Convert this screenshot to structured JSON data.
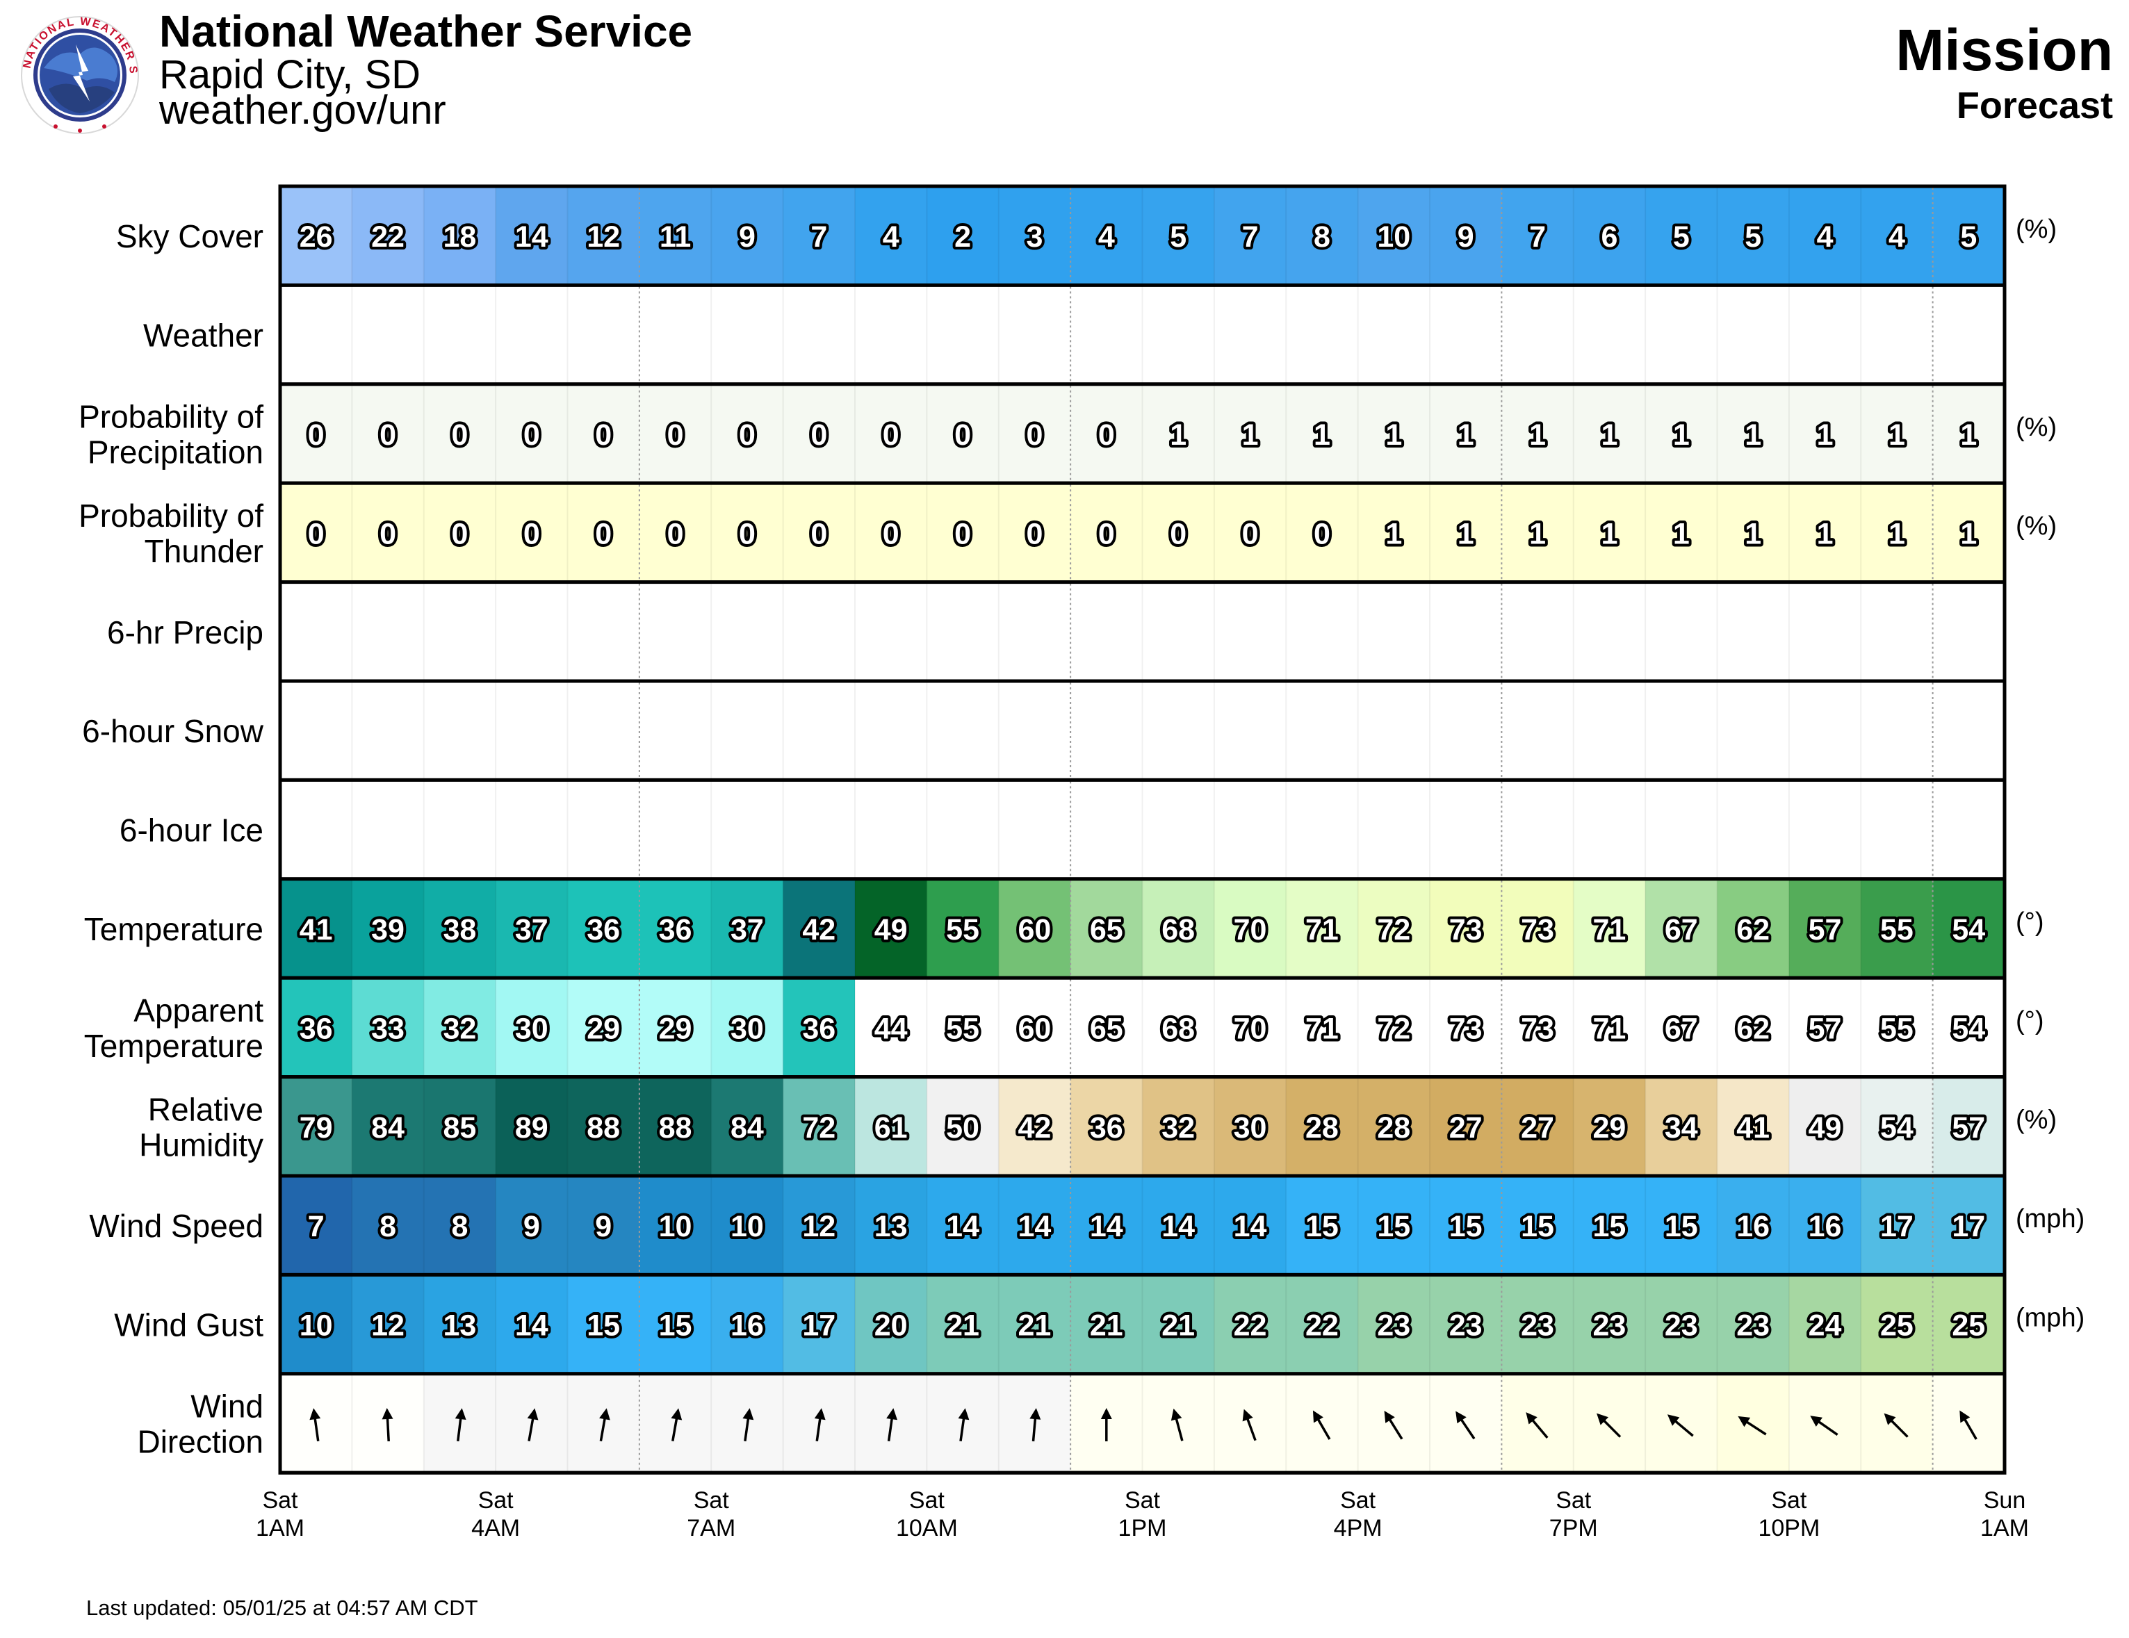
{
  "header": {
    "agency": "National Weather Service",
    "office": "Rapid City, SD",
    "url": "weather.gov/unr",
    "location": "Mission",
    "product": "Forecast",
    "logo_text": "NATIONAL WEATHER SERVICE"
  },
  "footer": {
    "last_updated": "Last updated: 05/01/25 at 04:57 AM CDT"
  },
  "chart_data": {
    "type": "table",
    "x_ticks": [
      {
        "day": "Sat",
        "time": "1AM",
        "hour_index": 0
      },
      {
        "day": "Sat",
        "time": "4AM",
        "hour_index": 3
      },
      {
        "day": "Sat",
        "time": "7AM",
        "hour_index": 6
      },
      {
        "day": "Sat",
        "time": "10AM",
        "hour_index": 9
      },
      {
        "day": "Sat",
        "time": "1PM",
        "hour_index": 12
      },
      {
        "day": "Sat",
        "time": "4PM",
        "hour_index": 15
      },
      {
        "day": "Sat",
        "time": "7PM",
        "hour_index": 18
      },
      {
        "day": "Sat",
        "time": "10PM",
        "hour_index": 21
      },
      {
        "day": "Sun",
        "time": "1AM",
        "hour_index": 24
      }
    ],
    "day_boundaries": [
      5,
      11,
      17,
      23
    ],
    "rows": [
      {
        "label": [
          "Sky Cover"
        ],
        "unit": "(%)",
        "kind": "values",
        "values": [
          26,
          22,
          18,
          14,
          12,
          11,
          9,
          7,
          4,
          2,
          3,
          4,
          5,
          7,
          8,
          10,
          9,
          7,
          6,
          5,
          5,
          4,
          4,
          5
        ],
        "colors": [
          "#9ac2f9",
          "#8bb9f7",
          "#7ab1f5",
          "#5fa6ee",
          "#55a5ee",
          "#4ea5ee",
          "#4aa4ee",
          "#41a4ee",
          "#33a2ee",
          "#2ea0ee",
          "#30a1ee",
          "#33a2ee",
          "#36a3ee",
          "#41a4ee",
          "#45a4ee",
          "#4ea5ee",
          "#4aa4ee",
          "#41a4ee",
          "#3da3ee",
          "#36a3ee",
          "#36a3ee",
          "#33a2ee",
          "#33a2ee",
          "#36a3ee"
        ]
      },
      {
        "label": [
          "Weather"
        ],
        "unit": "",
        "kind": "empty"
      },
      {
        "label": [
          "Probability of",
          "Precipitation"
        ],
        "unit": "(%)",
        "kind": "values",
        "values": [
          0,
          0,
          0,
          0,
          0,
          0,
          0,
          0,
          0,
          0,
          0,
          0,
          1,
          1,
          1,
          1,
          1,
          1,
          1,
          1,
          1,
          1,
          1,
          1
        ],
        "colors": [
          "#f5f9f2"
        ]
      },
      {
        "label": [
          "Probability of",
          "Thunder"
        ],
        "unit": "(%)",
        "kind": "values",
        "values": [
          0,
          0,
          0,
          0,
          0,
          0,
          0,
          0,
          0,
          0,
          0,
          0,
          0,
          0,
          0,
          1,
          1,
          1,
          1,
          1,
          1,
          1,
          1,
          1
        ],
        "colors": [
          "#ffffd2"
        ]
      },
      {
        "label": [
          "6-hr Precip"
        ],
        "unit": "",
        "kind": "empty"
      },
      {
        "label": [
          "6-hour Snow"
        ],
        "unit": "",
        "kind": "empty"
      },
      {
        "label": [
          "6-hour Ice"
        ],
        "unit": "",
        "kind": "empty"
      },
      {
        "label": [
          "Temperature"
        ],
        "unit": "(°)",
        "kind": "values",
        "values": [
          41,
          39,
          38,
          37,
          36,
          36,
          37,
          42,
          49,
          55,
          60,
          65,
          68,
          70,
          71,
          72,
          73,
          73,
          71,
          67,
          62,
          57,
          55,
          54
        ],
        "colors": [
          "#06928c",
          "#0aa29c",
          "#11ada6",
          "#1ab8b0",
          "#1dc2b8",
          "#1dc2b8",
          "#1ab8b0",
          "#0b7479",
          "#046428",
          "#2e9e4e",
          "#74c175",
          "#a2d99c",
          "#c6f0b8",
          "#d9fbc2",
          "#e4fdc6",
          "#ecfdc1",
          "#f2fdbb",
          "#f2fdbb",
          "#e4fdc6",
          "#b1e1a8",
          "#88cc82",
          "#55ad5a",
          "#3a9d4c",
          "#2b9547"
        ]
      },
      {
        "label": [
          "Apparent",
          "Temperature"
        ],
        "unit": "(°)",
        "kind": "values",
        "values": [
          36,
          33,
          32,
          30,
          29,
          29,
          30,
          36,
          44,
          55,
          60,
          65,
          68,
          70,
          71,
          72,
          73,
          73,
          71,
          67,
          62,
          57,
          55,
          54
        ],
        "colors": [
          "#23c4ba",
          "#5ddcd3",
          "#81ebe3",
          "#a2f8f3",
          "#b2fcf8",
          "#b2fcf8",
          "#a2f8f3",
          "#23c4ba",
          "#ffffff",
          "#ffffff",
          "#ffffff",
          "#ffffff",
          "#ffffff",
          "#ffffff",
          "#ffffff",
          "#ffffff",
          "#ffffff",
          "#ffffff",
          "#ffffff",
          "#ffffff",
          "#ffffff",
          "#ffffff",
          "#ffffff",
          "#ffffff"
        ]
      },
      {
        "label": [
          "Relative",
          "Humidity"
        ],
        "unit": "(%)",
        "kind": "values",
        "values": [
          79,
          84,
          85,
          89,
          88,
          88,
          84,
          72,
          61,
          50,
          42,
          36,
          32,
          30,
          28,
          28,
          27,
          27,
          29,
          34,
          41,
          49,
          54,
          57
        ],
        "colors": [
          "#3a978e",
          "#1c7972",
          "#1a766f",
          "#0b6158",
          "#0e655c",
          "#0e655c",
          "#1c7972",
          "#69bfb4",
          "#bce6e0",
          "#f1f1f1",
          "#f5e9cc",
          "#ecd6a6",
          "#e0c286",
          "#dab978",
          "#d4b068",
          "#d4b068",
          "#d2ac62",
          "#d2ac62",
          "#d7b46e",
          "#e8cf9b",
          "#f5e7c8",
          "#eeeeee",
          "#e8f1ef",
          "#d8ecea"
        ]
      },
      {
        "label": [
          "Wind Speed"
        ],
        "unit": "(mph)",
        "kind": "values",
        "values": [
          7,
          8,
          8,
          9,
          9,
          10,
          10,
          12,
          13,
          14,
          14,
          14,
          14,
          14,
          15,
          15,
          15,
          15,
          15,
          15,
          16,
          16,
          17,
          17
        ],
        "colors": [
          "#2166ac",
          "#2473b3",
          "#2473b3",
          "#2586c1",
          "#2586c1",
          "#1f8ccb",
          "#1f8ccb",
          "#2899d7",
          "#2aa3e2",
          "#2da9ec",
          "#2da9ec",
          "#2da9ec",
          "#2da9ec",
          "#2da9ec",
          "#35b2f7",
          "#35b2f7",
          "#35b2f7",
          "#35b2f7",
          "#35b2f7",
          "#35b2f7",
          "#3aafee",
          "#3aafee",
          "#52bce4",
          "#52bce4"
        ]
      },
      {
        "label": [
          "Wind Gust"
        ],
        "unit": "(mph)",
        "kind": "values",
        "values": [
          10,
          12,
          13,
          14,
          15,
          15,
          16,
          17,
          20,
          21,
          21,
          21,
          21,
          22,
          22,
          23,
          23,
          23,
          23,
          23,
          23,
          24,
          25,
          25
        ],
        "colors": [
          "#1f8ccb",
          "#2899d7",
          "#2aa3e2",
          "#2da9ec",
          "#35b2f7",
          "#35b2f7",
          "#3aafee",
          "#52bce4",
          "#6fc6c2",
          "#7dcbb8",
          "#7dcbb8",
          "#7dcbb8",
          "#7dcbb8",
          "#8bcfb1",
          "#8bcfb1",
          "#97d2aa",
          "#97d2aa",
          "#97d2aa",
          "#97d2aa",
          "#97d2aa",
          "#97d2aa",
          "#a6d7a2",
          "#b8df9d",
          "#b8df9d"
        ]
      },
      {
        "label": [
          "Wind",
          "Direction"
        ],
        "unit": "",
        "kind": "arrows",
        "values": [
          172,
          177,
          187,
          190,
          190,
          190,
          188,
          188,
          188,
          188,
          185,
          180,
          165,
          160,
          150,
          148,
          146,
          140,
          135,
          130,
          123,
          125,
          135,
          150
        ],
        "colors": [
          "#fffffc",
          "#fffffc",
          "#f7f7f7",
          "#f7f7f7",
          "#f7f7f7",
          "#f7f7f7",
          "#f7f7f7",
          "#f7f7f7",
          "#f7f7f7",
          "#f7f7f7",
          "#f7f7f7",
          "#fffff2",
          "#fffff2",
          "#fffff2",
          "#fffff2",
          "#fffff2",
          "#fffff2",
          "#ffffe8",
          "#ffffe8",
          "#ffffe8",
          "#ffffe0",
          "#ffffe8",
          "#ffffe8",
          "#fffff0"
        ]
      }
    ]
  }
}
